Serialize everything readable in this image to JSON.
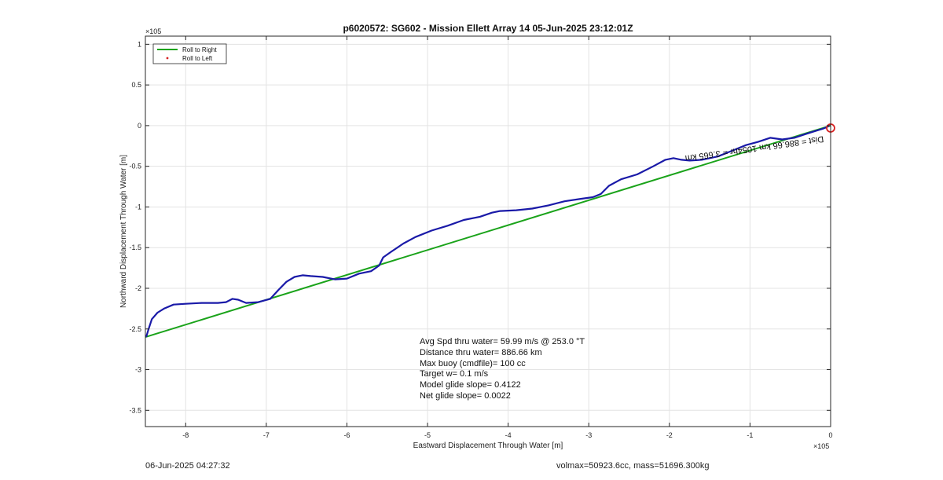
{
  "chart_data": {
    "type": "line",
    "title": "p6020572: SG602 - Mission Ellett Array 14 05-Jun-2025 23:12:01Z",
    "xlabel": "Eastward Displacement Through Water [m]",
    "ylabel": "Northward Displacement Through Water [m]",
    "x_exponent": "×10^5",
    "y_exponent": "×10^5",
    "xlim": [
      -8.5,
      0
    ],
    "ylim": [
      -3.7,
      1.1
    ],
    "x_ticks": [
      -8,
      -7,
      -6,
      -5,
      -4,
      -3,
      -2,
      -1,
      0
    ],
    "x_tick_labels": [
      "-8",
      "-7",
      "-6",
      "-5",
      "-4",
      "-3",
      "-2",
      "-1",
      "0"
    ],
    "y_ticks": [
      1,
      0.5,
      0,
      -0.5,
      -1,
      -1.5,
      -2,
      -2.5,
      -3,
      -3.5
    ],
    "y_tick_labels": [
      "1",
      "0.5",
      "0",
      "-0.5",
      "-1",
      "-1.5",
      "-2",
      "-2.5",
      "-3",
      "-3.5"
    ],
    "grid": true,
    "legend": {
      "placement": "top-left",
      "entries": [
        {
          "label": "Roll to Right",
          "color": "#1aa31a",
          "style": "line"
        },
        {
          "label": "Roll to Left",
          "color": "#d62020",
          "style": "marker"
        }
      ]
    },
    "series": [
      {
        "name": "Roll to Right",
        "color": "#1aa31a",
        "x": [
          -8.5,
          0
        ],
        "y": [
          -2.6,
          0
        ]
      },
      {
        "color": "#1a1aa8",
        "x": [
          -8.49,
          -8.46,
          -8.42,
          -8.35,
          -8.27,
          -8.15,
          -8.0,
          -7.8,
          -7.6,
          -7.5,
          -7.42,
          -7.35,
          -7.25,
          -7.1,
          -6.95,
          -6.85,
          -6.75,
          -6.65,
          -6.55,
          -6.45,
          -6.3,
          -6.15,
          -6.0,
          -5.85,
          -5.7,
          -5.6,
          -5.55,
          -5.45,
          -5.3,
          -5.15,
          -4.95,
          -4.75,
          -4.55,
          -4.35,
          -4.2,
          -4.1,
          -3.9,
          -3.7,
          -3.5,
          -3.3,
          -3.1,
          -2.95,
          -2.85,
          -2.75,
          -2.6,
          -2.4,
          -2.2,
          -2.05,
          -1.95,
          -1.85,
          -1.75,
          -1.6,
          -1.4,
          -1.2,
          -1.05,
          -0.9,
          -0.75,
          -0.6,
          -0.45,
          -0.3,
          -0.2,
          -0.1,
          -0.05,
          -0.02
        ],
        "y": [
          -2.6,
          -2.5,
          -2.38,
          -2.3,
          -2.25,
          -2.2,
          -2.19,
          -2.18,
          -2.18,
          -2.17,
          -2.13,
          -2.14,
          -2.18,
          -2.17,
          -2.13,
          -2.02,
          -1.92,
          -1.86,
          -1.84,
          -1.85,
          -1.86,
          -1.89,
          -1.88,
          -1.82,
          -1.79,
          -1.72,
          -1.62,
          -1.55,
          -1.45,
          -1.37,
          -1.29,
          -1.23,
          -1.16,
          -1.12,
          -1.07,
          -1.05,
          -1.04,
          -1.02,
          -0.98,
          -0.93,
          -0.9,
          -0.88,
          -0.84,
          -0.74,
          -0.66,
          -0.6,
          -0.5,
          -0.42,
          -0.4,
          -0.42,
          -0.43,
          -0.42,
          -0.38,
          -0.3,
          -0.24,
          -0.2,
          -0.15,
          -0.17,
          -0.15,
          -0.1,
          -0.07,
          -0.04,
          -0.02,
          0
        ]
      }
    ],
    "marker": {
      "x": 0,
      "y": -0.03,
      "color": "#d62020"
    },
    "annotation": "Dist = 886.66 km 1054hr = 3.665 km",
    "stats": [
      "Avg Spd thru water= 59.99 m/s @ 253.0 °T",
      "Distance thru water= 886.66 km",
      "Max buoy (cmdfile)= 100 cc",
      "Target w= 0.1 m/s",
      "Model glide slope= 0.4122",
      "Net glide slope= 0.0022"
    ]
  },
  "footer": {
    "left": "06-Jun-2025 04:27:32",
    "right": "volmax=50923.6cc, mass=51696.300kg"
  }
}
